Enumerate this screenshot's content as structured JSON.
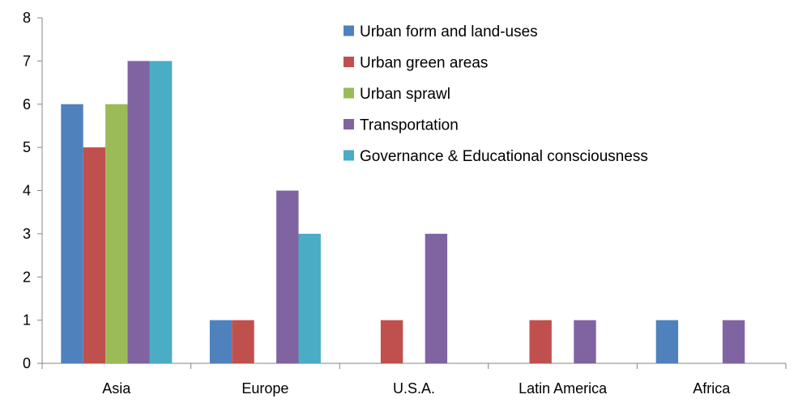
{
  "chart_data": {
    "type": "bar",
    "categories": [
      "Asia",
      "Europe",
      "U.S.A.",
      "Latin America",
      "Africa"
    ],
    "series": [
      {
        "name": "Urban form and land-uses",
        "color": "#4F81BD",
        "values": [
          6,
          1,
          0,
          0,
          1
        ]
      },
      {
        "name": "Urban green areas",
        "color": "#C0504D",
        "values": [
          5,
          1,
          1,
          1,
          0
        ]
      },
      {
        "name": "Urban sprawl",
        "color": "#9BBB59",
        "values": [
          6,
          0,
          0,
          0,
          0
        ]
      },
      {
        "name": "Transportation",
        "color": "#8064A2",
        "values": [
          7,
          4,
          3,
          1,
          1
        ]
      },
      {
        "name": "Governance & Educational consciousness",
        "color": "#4BACC6",
        "values": [
          7,
          3,
          0,
          0,
          0
        ]
      }
    ],
    "ylim": [
      0,
      8
    ],
    "yticks": [
      "0",
      "1",
      "2",
      "3",
      "4",
      "5",
      "6",
      "7",
      "8"
    ],
    "grid": false,
    "legend_position": "top-right"
  }
}
